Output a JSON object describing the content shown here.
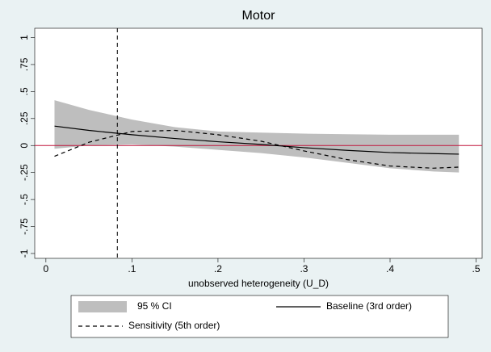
{
  "chart_data": {
    "type": "line",
    "title": "Motor",
    "x_label": "unobserved heterogeneity (U_D)",
    "x": [
      0.01,
      0.05,
      0.1,
      0.15,
      0.2,
      0.25,
      0.3,
      0.35,
      0.4,
      0.45,
      0.48
    ],
    "series": [
      {
        "name": "95 % CI",
        "kind": "band",
        "color": "#bebebe",
        "lower": [
          -0.03,
          0.0,
          0.01,
          -0.01,
          -0.04,
          -0.07,
          -0.11,
          -0.16,
          -0.21,
          -0.24,
          -0.25
        ],
        "upper": [
          0.42,
          0.33,
          0.24,
          0.17,
          0.13,
          0.12,
          0.11,
          0.105,
          0.1,
          0.1,
          0.1
        ]
      },
      {
        "name": "Baseline (3rd order)",
        "kind": "line",
        "color": "#000000",
        "dashed": false,
        "values": [
          0.18,
          0.14,
          0.1,
          0.065,
          0.035,
          0.01,
          -0.02,
          -0.045,
          -0.065,
          -0.075,
          -0.08
        ]
      },
      {
        "name": "Sensitivity (5th order)",
        "kind": "line",
        "color": "#000000",
        "dashed": true,
        "values": [
          -0.1,
          0.03,
          0.13,
          0.14,
          0.1,
          0.04,
          -0.05,
          -0.13,
          -0.19,
          -0.21,
          -0.2
        ]
      }
    ],
    "reference_x": 0.083,
    "reference_y": 0,
    "reference_y_color": "#c0143c",
    "xlim": [
      -0.013,
      0.507
    ],
    "ylim": [
      -1.045,
      1.086
    ],
    "xticks": [
      0,
      {
        "value": 0.1,
        "label": ".1"
      },
      {
        "value": 0.2,
        "label": ".2"
      },
      {
        "value": 0.3,
        "label": ".3"
      },
      {
        "value": 0.4,
        "label": ".4"
      },
      {
        "value": 0.5,
        "label": ".5"
      }
    ],
    "yticks": [
      -1,
      {
        "value": -0.75,
        "label": "-.75"
      },
      {
        "value": -0.5,
        "label": "-.5"
      },
      {
        "value": -0.25,
        "label": "-.25"
      },
      0,
      {
        "value": 0.25,
        "label": ".25"
      },
      {
        "value": 0.5,
        "label": ".5"
      },
      {
        "value": 0.75,
        "label": ".75"
      },
      1
    ]
  }
}
